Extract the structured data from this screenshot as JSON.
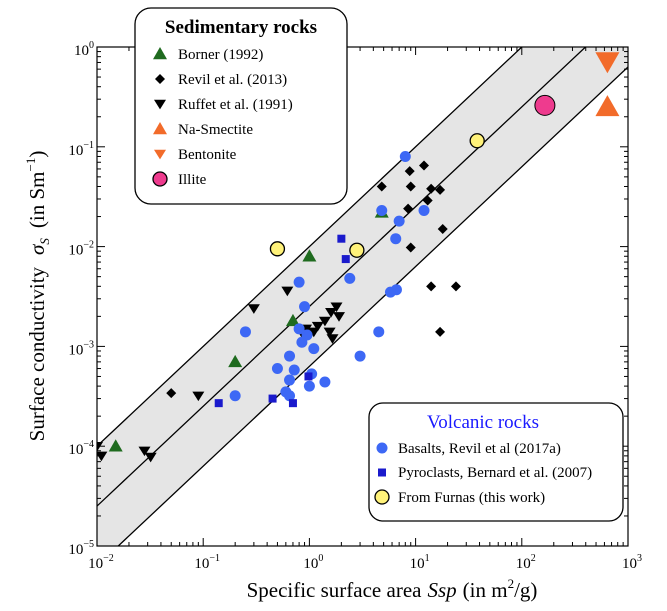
{
  "chart_data": {
    "type": "scatter",
    "x_scale": "log",
    "y_scale": "log",
    "xlim": [
      0.01,
      1000
    ],
    "ylim": [
      1e-05,
      1
    ],
    "x_ticks": [
      {
        "base": "10",
        "exp": "−2"
      },
      {
        "base": "10",
        "exp": "−1"
      },
      {
        "base": "10",
        "exp": "0"
      },
      {
        "base": "10",
        "exp": "1"
      },
      {
        "base": "10",
        "exp": "2"
      },
      {
        "base": "10",
        "exp": "3"
      }
    ],
    "y_ticks": [
      {
        "base": "10",
        "exp": "−5"
      },
      {
        "base": "10",
        "exp": "−4"
      },
      {
        "base": "10",
        "exp": "−3"
      },
      {
        "base": "10",
        "exp": "−2"
      },
      {
        "base": "10",
        "exp": "−1"
      },
      {
        "base": "10",
        "exp": "0"
      }
    ],
    "xlabel": {
      "main": "Specific surface area",
      "symbol": "Ssp",
      "units": "(in m",
      "units_sup": "2",
      "units_end": "/g)"
    },
    "ylabel": {
      "main": "Surface conductivity",
      "symbol": "σ",
      "symbol_sub": "S",
      "units": "(in Sm",
      "units_sup": "−1",
      "units_end": ")"
    },
    "reference_lines": [
      {
        "slope": 1,
        "intercept_log": -2.0
      },
      {
        "slope": 1,
        "intercept_log": -2.6
      },
      {
        "slope": 1,
        "intercept_log": -3.2
      }
    ],
    "band": {
      "upper_intercept_log": -2.0,
      "lower_intercept_log": -3.2,
      "color": "#e5e5e5"
    },
    "legend_sedimentary": {
      "title": "Sedimentary rocks",
      "entries": [
        "Borner (1992)",
        "Revil et al. (2013)",
        "Ruffet et al. (1991)",
        "Na-Smectite",
        "Bentonite",
        "Illite"
      ]
    },
    "legend_volcanic": {
      "title": "Volcanic rocks",
      "entries": [
        "Basalts, Revil et al (2017a)",
        "Pyroclasts, Bernard et al. (2007)",
        "From Furnas (this work)"
      ]
    },
    "series": [
      {
        "name": "Borner (1992)",
        "marker": "triangle-up",
        "color": "#1f6b1f",
        "points": [
          [
            0.015,
            0.0001
          ],
          [
            0.2,
            0.0007
          ],
          [
            0.7,
            0.0018
          ],
          [
            1.0,
            0.008
          ],
          [
            4.8,
            0.022
          ]
        ]
      },
      {
        "name": "Revil et al. (2013)",
        "marker": "diamond",
        "color": "#000000",
        "points": [
          [
            0.05,
            0.00034
          ],
          [
            4.8,
            0.04
          ],
          [
            8.8,
            0.057
          ],
          [
            12.0,
            0.065
          ],
          [
            14.0,
            0.038
          ],
          [
            17.0,
            0.037
          ],
          [
            9.0,
            0.04
          ],
          [
            13.0,
            0.029
          ],
          [
            8.5,
            0.024
          ],
          [
            18.0,
            0.015
          ],
          [
            9.0,
            0.0098
          ],
          [
            14.0,
            0.004
          ],
          [
            24.0,
            0.004
          ],
          [
            17.0,
            0.0014
          ]
        ]
      },
      {
        "name": "Ruffet et al. (1991)",
        "marker": "triangle-down",
        "color": "#000000",
        "points": [
          [
            0.01,
            0.0001
          ],
          [
            0.011,
            8e-05
          ],
          [
            0.028,
            9e-05
          ],
          [
            0.032,
            7.8e-05
          ],
          [
            0.09,
            0.00032
          ],
          [
            0.3,
            0.0024
          ],
          [
            0.62,
            0.0036
          ],
          [
            0.93,
            0.0015
          ],
          [
            0.84,
            0.0014
          ],
          [
            1.1,
            0.0014
          ],
          [
            1.6,
            0.0022
          ],
          [
            1.8,
            0.0025
          ],
          [
            1.4,
            0.0018
          ],
          [
            1.2,
            0.0016
          ],
          [
            1.65,
            0.0012
          ],
          [
            1.55,
            0.0014
          ],
          [
            1.9,
            0.002
          ]
        ]
      },
      {
        "name": "Na-Smectite",
        "marker": "triangle-up",
        "color": "#f26b2a",
        "points": [
          [
            640,
            0.25
          ]
        ]
      },
      {
        "name": "Bentonite",
        "marker": "triangle-down",
        "color": "#f26b2a",
        "points": [
          [
            640,
            0.72
          ]
        ]
      },
      {
        "name": "Illite",
        "marker": "circle-outlined",
        "color": "#ee3b8e",
        "points": [
          [
            165,
            0.26
          ]
        ]
      },
      {
        "name": "Basalts, Revil et al (2017a)",
        "marker": "circle",
        "color": "#3d68f5",
        "points": [
          [
            8.0,
            0.08
          ],
          [
            4.8,
            0.023
          ],
          [
            7.0,
            0.018
          ],
          [
            12.0,
            0.023
          ],
          [
            6.5,
            0.012
          ],
          [
            2.4,
            0.0048
          ],
          [
            0.8,
            0.0044
          ],
          [
            0.9,
            0.0025
          ],
          [
            6.6,
            0.0037
          ],
          [
            5.8,
            0.0035
          ],
          [
            0.25,
            0.0014
          ],
          [
            0.8,
            0.0015
          ],
          [
            0.95,
            0.0013
          ],
          [
            0.85,
            0.0011
          ],
          [
            4.5,
            0.0014
          ],
          [
            1.1,
            0.00095
          ],
          [
            3.0,
            0.0008
          ],
          [
            0.65,
            0.0008
          ],
          [
            0.5,
            0.0006
          ],
          [
            0.72,
            0.00058
          ],
          [
            1.05,
            0.00053
          ],
          [
            0.65,
            0.00046
          ],
          [
            1.4,
            0.00044
          ],
          [
            1.0,
            0.0004
          ],
          [
            0.2,
            0.00032
          ],
          [
            0.6,
            0.00035
          ],
          [
            0.65,
            0.00032
          ]
        ]
      },
      {
        "name": "Pyroclasts, Bernard et al. (2007)",
        "marker": "square",
        "color": "#1a1acc",
        "points": [
          [
            2.0,
            0.012
          ],
          [
            2.2,
            0.0075
          ],
          [
            0.14,
            0.00027
          ],
          [
            0.45,
            0.0003
          ],
          [
            0.7,
            0.00027
          ],
          [
            0.98,
            0.0005
          ]
        ]
      },
      {
        "name": "From Furnas (this work)",
        "marker": "circle-outlined",
        "color": "#fff27a",
        "points": [
          [
            0.5,
            0.0095
          ],
          [
            2.8,
            0.0092
          ],
          [
            38,
            0.115
          ]
        ]
      }
    ]
  }
}
